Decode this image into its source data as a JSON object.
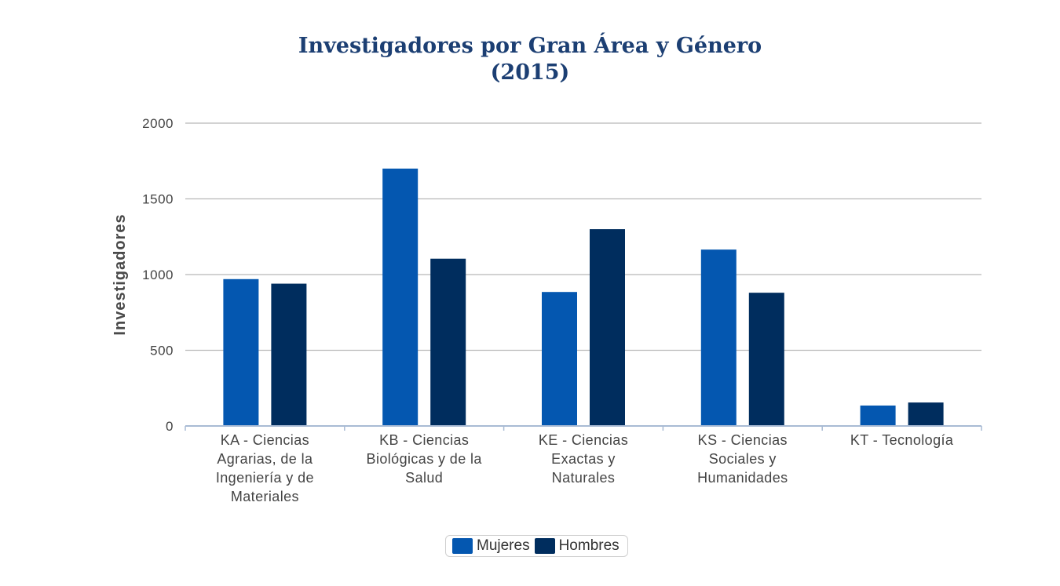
{
  "chart_data": {
    "type": "bar",
    "title": [
      "Investigadores por Gran Área y Género",
      "(2015)"
    ],
    "xlabel": "",
    "ylabel": "Investigadores",
    "ylim": [
      0,
      2000
    ],
    "yticks": [
      "0",
      "500",
      "1000",
      "1500",
      "2000"
    ],
    "grid": true,
    "legend_position": "bottom",
    "categories": [
      [
        "KA - Ciencias",
        "Agrarias, de la",
        "Ingeniería y de",
        "Materiales"
      ],
      [
        "KB - Ciencias",
        "Biológicas y de la",
        "Salud"
      ],
      [
        "KE - Ciencias",
        "Exactas y",
        "Naturales"
      ],
      [
        "KS - Ciencias",
        "Sociales y",
        "Humanidades"
      ],
      [
        "KT - Tecnología"
      ]
    ],
    "series": [
      {
        "name": "Mujeres",
        "color": "#0457b0",
        "values": [
          970,
          1700,
          885,
          1165,
          135
        ]
      },
      {
        "name": "Hombres",
        "color": "#002d5e",
        "values": [
          940,
          1105,
          1300,
          880,
          155
        ]
      }
    ]
  }
}
